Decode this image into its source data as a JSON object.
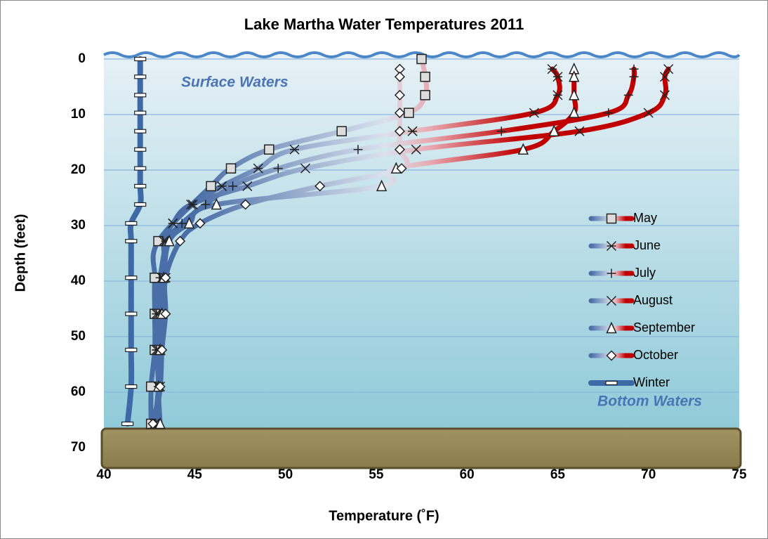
{
  "chart_data": {
    "type": "scatter",
    "title": "Lake Martha Water Temperatures 2011",
    "x_label": "Temperature (˚F)",
    "y_label": "Depth (feet)",
    "annotations": [
      "Surface Waters",
      "Bottom Waters"
    ],
    "xlim": [
      40,
      75
    ],
    "xticks": [
      40,
      45,
      50,
      55,
      60,
      65,
      70,
      75
    ],
    "ylim": [
      0,
      70
    ],
    "yticks": [
      0,
      10,
      20,
      30,
      40,
      50,
      60,
      70
    ],
    "y_reversed": true,
    "grid": true,
    "warm_color": "#c00000",
    "series": [
      {
        "name": "May",
        "marker": "square",
        "color": "#4a6ea8",
        "x": [
          57.5,
          57.7,
          57.7,
          56.8,
          53.1,
          49.1,
          47.0,
          45.9,
          43.0,
          42.8,
          42.8,
          42.8,
          42.6,
          42.6
        ],
        "y": [
          0,
          3.2,
          6.5,
          9.7,
          13.0,
          16.3,
          19.7,
          22.9,
          32.8,
          39.4,
          45.9,
          52.4,
          59.0,
          65.7
        ]
      },
      {
        "name": "June",
        "marker": "asterisk",
        "color": "#4a6ea8",
        "x": [
          64.7,
          65.0,
          65.0,
          63.7,
          57.0,
          50.5,
          48.5,
          46.5,
          44.9,
          43.8,
          43.4,
          43.2,
          42.9,
          42.9,
          43.0,
          42.8
        ],
        "y": [
          1.8,
          3.2,
          6.5,
          9.7,
          13.0,
          16.3,
          19.7,
          22.9,
          26.2,
          29.6,
          32.8,
          39.4,
          45.9,
          52.4,
          59.0,
          65.7
        ]
      },
      {
        "name": "July",
        "marker": "plus",
        "color": "#4a6ea8",
        "x": [
          69.2,
          69.2,
          68.9,
          67.8,
          61.9,
          54.0,
          49.6,
          47.1,
          45.6,
          44.3,
          43.5,
          43.1,
          42.9,
          42.9,
          43.0,
          42.8
        ],
        "y": [
          1.8,
          3.2,
          6.5,
          9.7,
          13.0,
          16.3,
          19.7,
          22.9,
          26.2,
          29.6,
          32.8,
          39.4,
          45.9,
          52.4,
          59.0,
          65.7
        ]
      },
      {
        "name": "August",
        "marker": "x",
        "color": "#4a6ea8",
        "x": [
          71.1,
          70.9,
          70.9,
          70.0,
          66.2,
          57.2,
          51.1,
          47.9,
          44.8,
          43.8,
          43.3,
          43.4,
          43.0,
          43.0,
          43.1,
          42.8
        ],
        "y": [
          1.8,
          3.2,
          6.5,
          9.7,
          13.0,
          16.3,
          19.7,
          22.9,
          26.2,
          29.6,
          32.8,
          39.4,
          45.9,
          52.4,
          59.0,
          65.7
        ]
      },
      {
        "name": "September",
        "marker": "triangle",
        "color": "#4a6ea8",
        "x": [
          65.9,
          65.9,
          65.9,
          65.9,
          64.8,
          63.1,
          56.1,
          55.3,
          46.2,
          44.7,
          43.6,
          43.3,
          43.2,
          43.1,
          43.0,
          43.1
        ],
        "y": [
          1.8,
          3.2,
          6.5,
          9.7,
          13.0,
          16.3,
          19.7,
          22.9,
          26.2,
          29.6,
          32.8,
          39.4,
          45.9,
          52.4,
          59.0,
          65.7
        ]
      },
      {
        "name": "October",
        "marker": "diamond",
        "color": "#4a6ea8",
        "x": [
          56.3,
          56.3,
          56.3,
          56.3,
          56.3,
          56.3,
          56.4,
          51.9,
          47.8,
          45.3,
          44.2,
          43.4,
          43.4,
          43.2,
          43.1,
          42.7
        ],
        "y": [
          1.8,
          3.2,
          6.5,
          9.7,
          13.0,
          16.3,
          19.7,
          22.9,
          26.2,
          29.6,
          32.8,
          39.4,
          45.9,
          52.4,
          59.0,
          65.7
        ]
      },
      {
        "name": "Winter",
        "marker": "dash",
        "color": "#3d6aa6",
        "x": [
          42.0,
          42.0,
          42.0,
          42.0,
          42.0,
          42.0,
          42.0,
          42.0,
          42.0,
          41.5,
          41.5,
          41.5,
          41.5,
          41.5,
          41.5,
          41.3
        ],
        "y": [
          0,
          3.2,
          6.5,
          9.7,
          13.0,
          16.3,
          19.7,
          22.9,
          26.2,
          29.6,
          32.8,
          39.4,
          45.9,
          52.4,
          59.0,
          65.7
        ]
      }
    ]
  }
}
